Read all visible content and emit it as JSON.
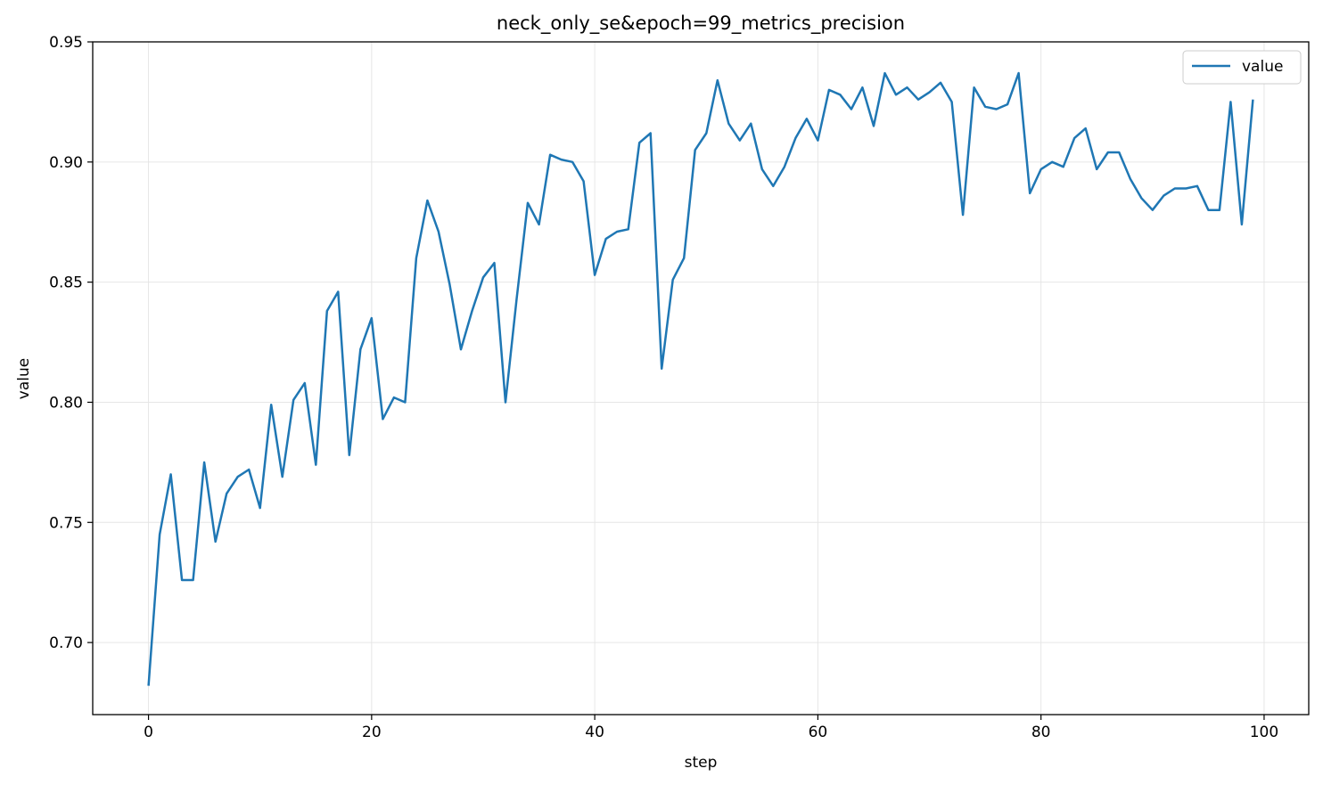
{
  "chart_data": {
    "type": "line",
    "title": "neck_only_se&epoch=99_metrics_precision",
    "xlabel": "step",
    "ylabel": "value",
    "xlim": [
      -5,
      104
    ],
    "ylim": [
      0.67,
      0.95
    ],
    "xticks": [
      0,
      20,
      40,
      60,
      80,
      100
    ],
    "yticks": [
      0.7,
      0.75,
      0.8,
      0.85,
      0.9,
      0.95
    ],
    "grid": true,
    "legend_position": "top-right",
    "color": "#1f77b4",
    "series": [
      {
        "name": "value",
        "x": [
          0,
          1,
          2,
          3,
          4,
          5,
          6,
          7,
          8,
          9,
          10,
          11,
          12,
          13,
          14,
          15,
          16,
          17,
          18,
          19,
          20,
          21,
          22,
          23,
          24,
          25,
          26,
          27,
          28,
          29,
          30,
          31,
          32,
          33,
          34,
          35,
          36,
          37,
          38,
          39,
          40,
          41,
          42,
          43,
          44,
          45,
          46,
          47,
          48,
          49,
          50,
          51,
          52,
          53,
          54,
          55,
          56,
          57,
          58,
          59,
          60,
          61,
          62,
          63,
          64,
          65,
          66,
          67,
          68,
          69,
          70,
          71,
          72,
          73,
          74,
          75,
          76,
          77,
          78,
          79,
          80,
          81,
          82,
          83,
          84,
          85,
          86,
          87,
          88,
          89,
          90,
          91,
          92,
          93,
          94,
          95,
          96,
          97,
          98,
          99
        ],
        "values": [
          0.682,
          0.745,
          0.77,
          0.726,
          0.726,
          0.775,
          0.742,
          0.762,
          0.769,
          0.772,
          0.756,
          0.799,
          0.769,
          0.801,
          0.808,
          0.774,
          0.838,
          0.846,
          0.778,
          0.822,
          0.835,
          0.793,
          0.802,
          0.8,
          0.86,
          0.884,
          0.871,
          0.849,
          0.822,
          0.838,
          0.852,
          0.858,
          0.8,
          0.843,
          0.883,
          0.874,
          0.903,
          0.901,
          0.9,
          0.892,
          0.853,
          0.868,
          0.871,
          0.872,
          0.908,
          0.912,
          0.814,
          0.851,
          0.86,
          0.905,
          0.912,
          0.934,
          0.916,
          0.909,
          0.916,
          0.897,
          0.89,
          0.898,
          0.91,
          0.918,
          0.909,
          0.93,
          0.928,
          0.922,
          0.931,
          0.915,
          0.937,
          0.928,
          0.931,
          0.926,
          0.929,
          0.933,
          0.925,
          0.878,
          0.931,
          0.923,
          0.922,
          0.924,
          0.937,
          0.887,
          0.897,
          0.9,
          0.898,
          0.91,
          0.914,
          0.897,
          0.904,
          0.904,
          0.893,
          0.885,
          0.88,
          0.886,
          0.889,
          0.889,
          0.89,
          0.88,
          0.88,
          0.925,
          0.874,
          0.926
        ]
      }
    ]
  }
}
